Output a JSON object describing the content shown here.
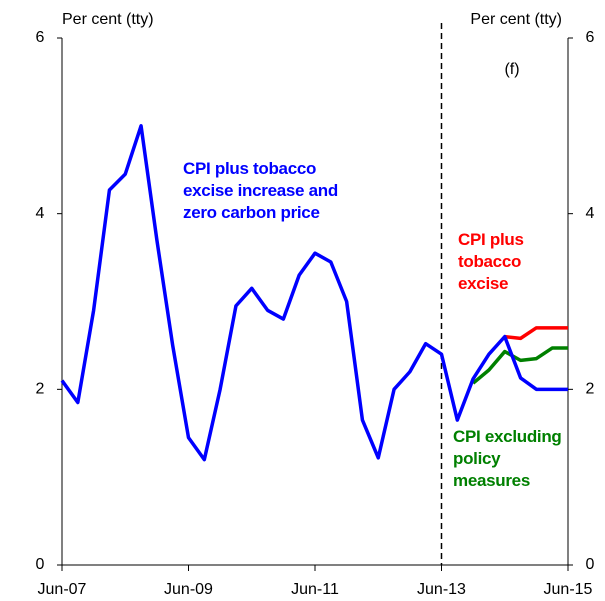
{
  "chart_data": {
    "type": "line",
    "y_label": "Per cent (tty)",
    "y2_label": "Per cent (tty)",
    "forecast_label": "(f)",
    "categories": [
      "Jun-07",
      null,
      null,
      null,
      null,
      null,
      null,
      null,
      "Jun-09",
      null,
      null,
      null,
      null,
      null,
      null,
      null,
      "Jun-11",
      null,
      null,
      null,
      null,
      null,
      null,
      null,
      "Jun-13",
      null,
      null,
      null,
      null,
      null,
      null,
      null,
      "Jun-15"
    ],
    "forecast_start": "Jun-13",
    "series": [
      {
        "name": "CPI excluding policy measures",
        "color": "#008000",
        "values": [
          null,
          null,
          null,
          null,
          null,
          null,
          null,
          null,
          null,
          null,
          null,
          null,
          null,
          null,
          null,
          null,
          null,
          null,
          null,
          null,
          null,
          null,
          null,
          null,
          null,
          null,
          2.07,
          2.22,
          2.43,
          2.33,
          2.35,
          2.47,
          2.47
        ]
      },
      {
        "name": "CPI plus tobacco excise",
        "color": "#ff0000",
        "values": [
          null,
          null,
          null,
          null,
          null,
          null,
          null,
          null,
          null,
          null,
          null,
          null,
          null,
          null,
          null,
          null,
          null,
          null,
          null,
          null,
          null,
          null,
          null,
          null,
          null,
          null,
          null,
          null,
          2.6,
          2.58,
          2.7,
          2.7,
          2.7
        ]
      },
      {
        "name": "CPI plus tobacco excise increase and zero carbon price",
        "color": "#0000ff",
        "values": [
          2.1,
          1.85,
          2.9,
          4.27,
          4.45,
          5.0,
          3.7,
          2.5,
          1.45,
          1.2,
          2.0,
          2.95,
          3.15,
          2.9,
          2.8,
          3.3,
          3.55,
          3.45,
          3.0,
          1.65,
          1.22,
          2.0,
          2.2,
          2.52,
          2.4,
          1.65,
          2.12,
          2.4,
          2.6,
          2.13,
          2.0,
          2.0,
          2.0
        ]
      }
    ],
    "ylim": [
      0,
      6
    ],
    "yticks": [
      0,
      2,
      4,
      6
    ],
    "y2lim": [
      0,
      6
    ],
    "y2ticks": [
      0,
      2,
      4,
      6
    ]
  }
}
